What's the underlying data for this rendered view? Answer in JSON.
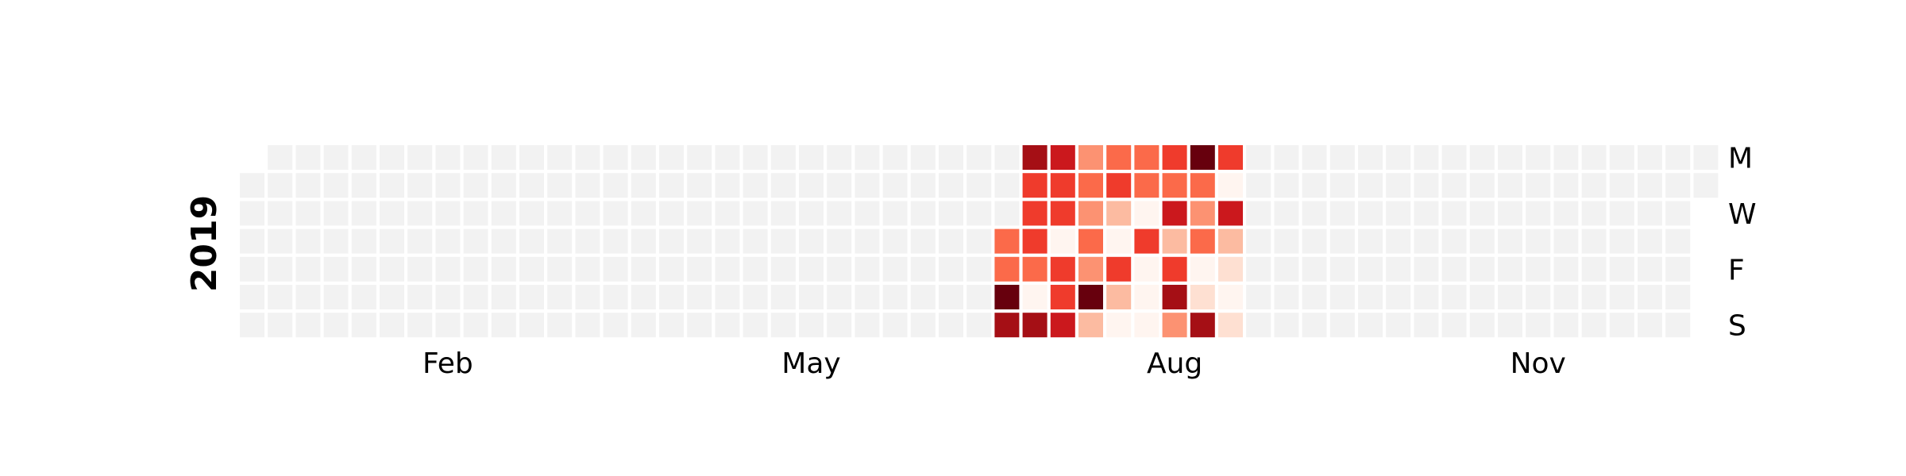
{
  "chart_data": {
    "type": "heatmap",
    "title": "",
    "year": "2019",
    "start_date": "2019-01-01",
    "end_date": "2019-12-31",
    "month_tick_labels": [
      {
        "label": "Feb",
        "week": 7
      },
      {
        "label": "May",
        "week": 20
      },
      {
        "label": "Aug",
        "week": 33
      },
      {
        "label": "Nov",
        "week": 46
      }
    ],
    "weekday_tick_labels": [
      {
        "label": "M",
        "row": 0
      },
      {
        "label": "W",
        "row": 2
      },
      {
        "label": "F",
        "row": 4
      },
      {
        "label": "S",
        "row": 6
      }
    ],
    "empty_color": "#f2f2f2",
    "colormap": [
      "#fff5f0",
      "#fee0d2",
      "#fcbba1",
      "#fc9272",
      "#fb6a4a",
      "#ef3b2c",
      "#cb181d",
      "#a50f15",
      "#67000d"
    ],
    "value_range": [
      0,
      8
    ],
    "values": {
      "2019-07-11": 4,
      "2019-07-12": 4,
      "2019-07-13": 8,
      "2019-07-14": 7,
      "2019-07-15": 7,
      "2019-07-16": 5,
      "2019-07-17": 5,
      "2019-07-18": 5,
      "2019-07-19": 4,
      "2019-07-20": 0,
      "2019-07-21": 7,
      "2019-07-22": 6,
      "2019-07-23": 5,
      "2019-07-24": 5,
      "2019-07-25": 0,
      "2019-07-26": 5,
      "2019-07-27": 5,
      "2019-07-28": 6,
      "2019-07-29": 3,
      "2019-07-30": 4,
      "2019-07-31": 3,
      "2019-08-01": 4,
      "2019-08-02": 3,
      "2019-08-03": 8,
      "2019-08-04": 2,
      "2019-08-05": 4,
      "2019-08-06": 5,
      "2019-08-07": 2,
      "2019-08-08": 0,
      "2019-08-09": 5,
      "2019-08-10": 2,
      "2019-08-11": 0,
      "2019-08-12": 4,
      "2019-08-13": 4,
      "2019-08-14": 0,
      "2019-08-15": 5,
      "2019-08-16": 0,
      "2019-08-17": 0,
      "2019-08-18": 0,
      "2019-08-19": 5,
      "2019-08-20": 4,
      "2019-08-21": 6,
      "2019-08-22": 2,
      "2019-08-23": 5,
      "2019-08-24": 7,
      "2019-08-25": 3,
      "2019-08-26": 8,
      "2019-08-27": 4,
      "2019-08-28": 3,
      "2019-08-29": 4,
      "2019-08-30": 0,
      "2019-08-31": 1,
      "2019-09-01": 7,
      "2019-09-02": 5,
      "2019-09-03": 0,
      "2019-09-04": 6,
      "2019-09-05": 2,
      "2019-09-06": 1,
      "2019-09-07": 0,
      "2019-09-08": 1
    }
  }
}
